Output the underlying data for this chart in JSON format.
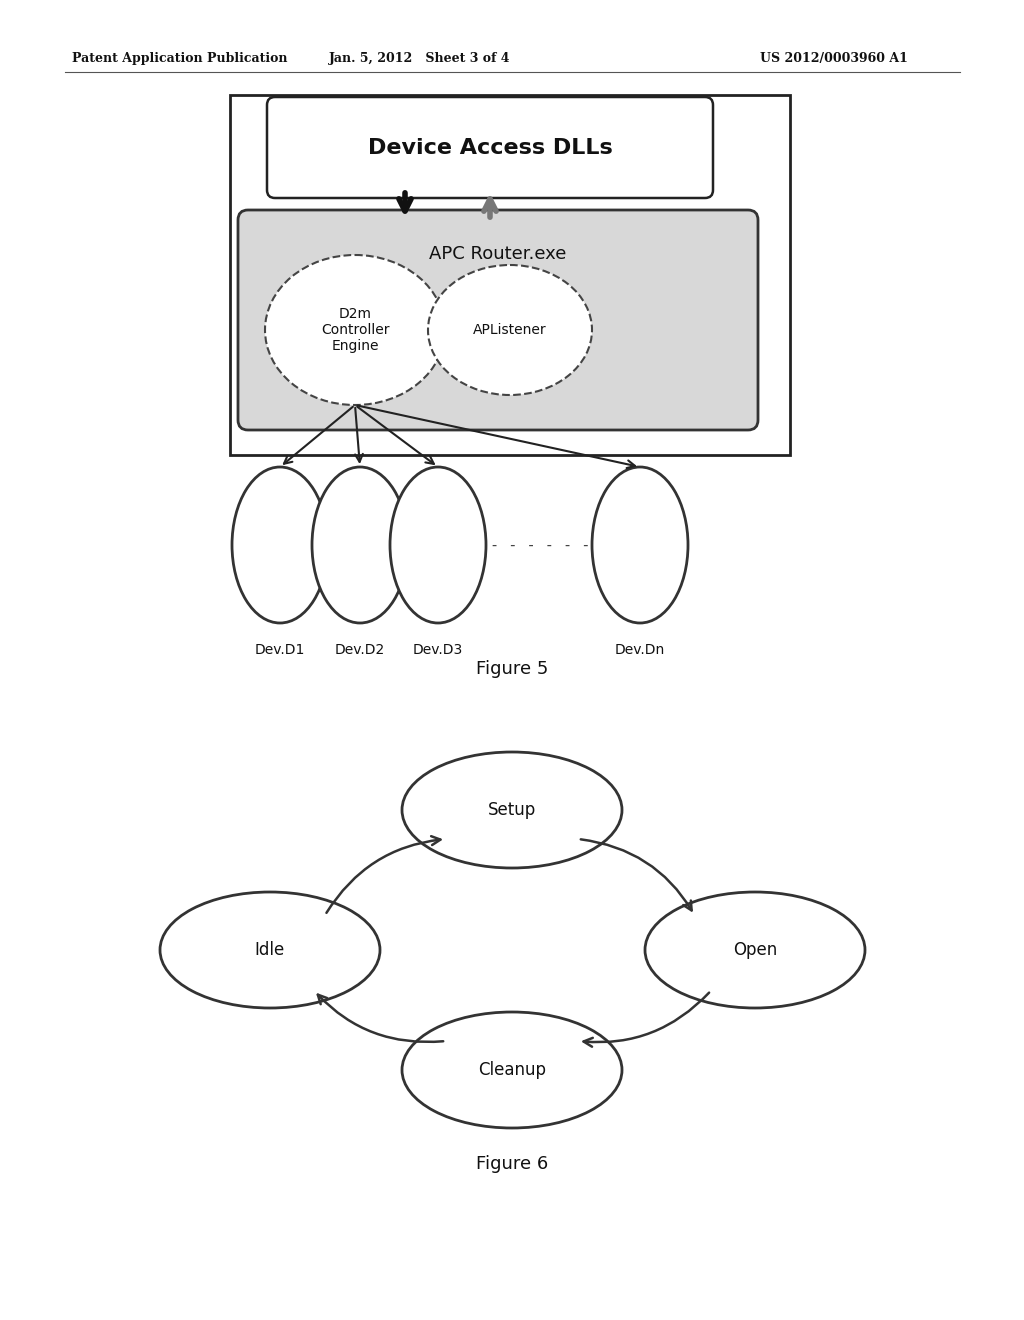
{
  "header_left": "Patent Application Publication",
  "header_mid": "Jan. 5, 2012   Sheet 3 of 4",
  "header_right": "US 2012/0003960 A1",
  "fig5_title": "Figure 5",
  "fig6_title": "Figure 6",
  "bg_color": "#ffffff"
}
